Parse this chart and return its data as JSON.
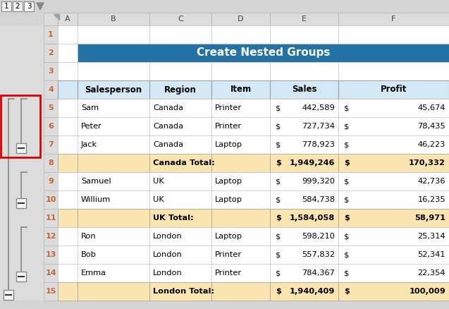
{
  "title": "Create Nested Groups",
  "title_bg": "#2471A3",
  "title_fg": "#FFFFFF",
  "header_bg": "#D5E8F5",
  "header_fg": "#000000",
  "total_bg": "#FAE5B0",
  "normal_bg": "#FFFFFF",
  "col_header_bg": "#E8E8E8",
  "row_num_fg": "#C0683A",
  "headers": [
    "Salesperson",
    "Region",
    "Item",
    "Sales",
    "Profit"
  ],
  "rows": [
    {
      "salesperson": "Sam",
      "region": "Canada",
      "item": "Printer",
      "sales": "442,589",
      "profit": "45,674",
      "is_total": false
    },
    {
      "salesperson": "Peter",
      "region": "Canada",
      "item": "Printer",
      "sales": "727,734",
      "profit": "78,435",
      "is_total": false
    },
    {
      "salesperson": "Jack",
      "region": "Canada",
      "item": "Laptop",
      "sales": "778,923",
      "profit": "46,223",
      "is_total": false
    },
    {
      "salesperson": "",
      "region": "Canada Total:",
      "item": "",
      "sales": "1,949,246",
      "profit": "170,332",
      "is_total": true
    },
    {
      "salesperson": "Samuel",
      "region": "UK",
      "item": "Laptop",
      "sales": "999,320",
      "profit": "42,736",
      "is_total": false
    },
    {
      "salesperson": "Willium",
      "region": "UK",
      "item": "Laptop",
      "sales": "584,738",
      "profit": "16,235",
      "is_total": false
    },
    {
      "salesperson": "",
      "region": "UK Total:",
      "item": "",
      "sales": "1,584,058",
      "profit": "58,971",
      "is_total": true
    },
    {
      "salesperson": "Ron",
      "region": "London",
      "item": "Laptop",
      "sales": "598,210",
      "profit": "25,314",
      "is_total": false
    },
    {
      "salesperson": "Bob",
      "region": "London",
      "item": "Printer",
      "sales": "557,832",
      "profit": "52,341",
      "is_total": false
    },
    {
      "salesperson": "Emma",
      "region": "London",
      "item": "Printer",
      "sales": "784,367",
      "profit": "22,354",
      "is_total": false
    },
    {
      "salesperson": "",
      "region": "London Total:",
      "item": "",
      "sales": "1,940,409",
      "profit": "100,009",
      "is_total": true
    }
  ]
}
